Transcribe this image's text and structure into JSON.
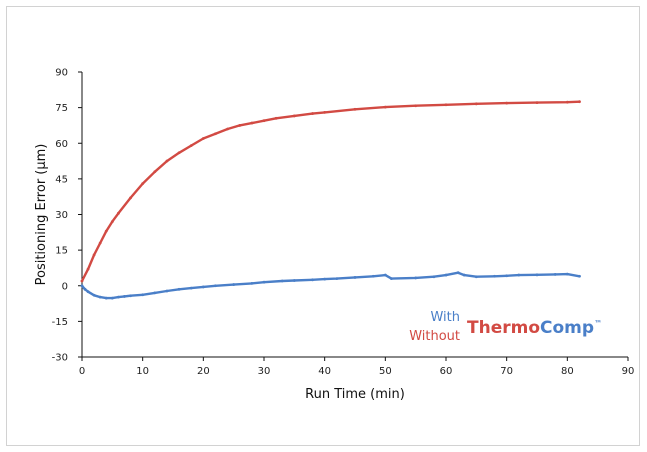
{
  "chart_data": {
    "type": "scatter",
    "xlabel": "Run Time (min)",
    "ylabel": "Positioning Error (µm)",
    "xlim": [
      0,
      90
    ],
    "ylim": [
      -30,
      90
    ],
    "xticks": [
      0,
      10,
      20,
      30,
      40,
      50,
      60,
      70,
      80,
      90
    ],
    "yticks": [
      -30,
      -15,
      0,
      15,
      30,
      45,
      60,
      75,
      90
    ],
    "grid": false,
    "legend": {
      "placement": "bottom-right",
      "with_label": "With",
      "without_label": "Without",
      "brand_part1": "Thermo",
      "brand_part2": "Comp",
      "brand_mark": "™"
    },
    "series": [
      {
        "name": "Without",
        "color": "#d24a43",
        "x": [
          0,
          1,
          2,
          3,
          4,
          5,
          6,
          8,
          10,
          12,
          14,
          16,
          18,
          20,
          22,
          24,
          26,
          28,
          30,
          32,
          35,
          38,
          40,
          45,
          50,
          55,
          60,
          65,
          70,
          75,
          80,
          82
        ],
        "y": [
          2,
          7,
          13,
          18,
          23,
          27,
          30.5,
          37,
          43,
          48,
          52.5,
          56,
          59,
          62,
          64,
          66,
          67.5,
          68.5,
          69.5,
          70.5,
          71.5,
          72.5,
          73,
          74.3,
          75.2,
          75.8,
          76.2,
          76.6,
          76.9,
          77.1,
          77.3,
          77.5
        ]
      },
      {
        "name": "With",
        "color": "#4a7fc8",
        "x": [
          0,
          0.5,
          1,
          2,
          3,
          4,
          5,
          6,
          7,
          8,
          10,
          12,
          14,
          16,
          18,
          20,
          22,
          25,
          28,
          30,
          33,
          35,
          38,
          40,
          42,
          45,
          48,
          50,
          51,
          55,
          58,
          60,
          62,
          63,
          65,
          68,
          70,
          72,
          75,
          78,
          80,
          82
        ],
        "y": [
          0,
          -1.5,
          -2.5,
          -4,
          -4.8,
          -5.2,
          -5.2,
          -4.8,
          -4.5,
          -4.2,
          -3.8,
          -3,
          -2.2,
          -1.5,
          -1,
          -0.5,
          0,
          0.5,
          1,
          1.5,
          2,
          2.2,
          2.5,
          2.8,
          3,
          3.5,
          4,
          4.5,
          3,
          3.3,
          3.8,
          4.5,
          5.5,
          4.5,
          3.8,
          4,
          4.2,
          4.5,
          4.6,
          4.8,
          4.9,
          4
        ]
      }
    ]
  }
}
